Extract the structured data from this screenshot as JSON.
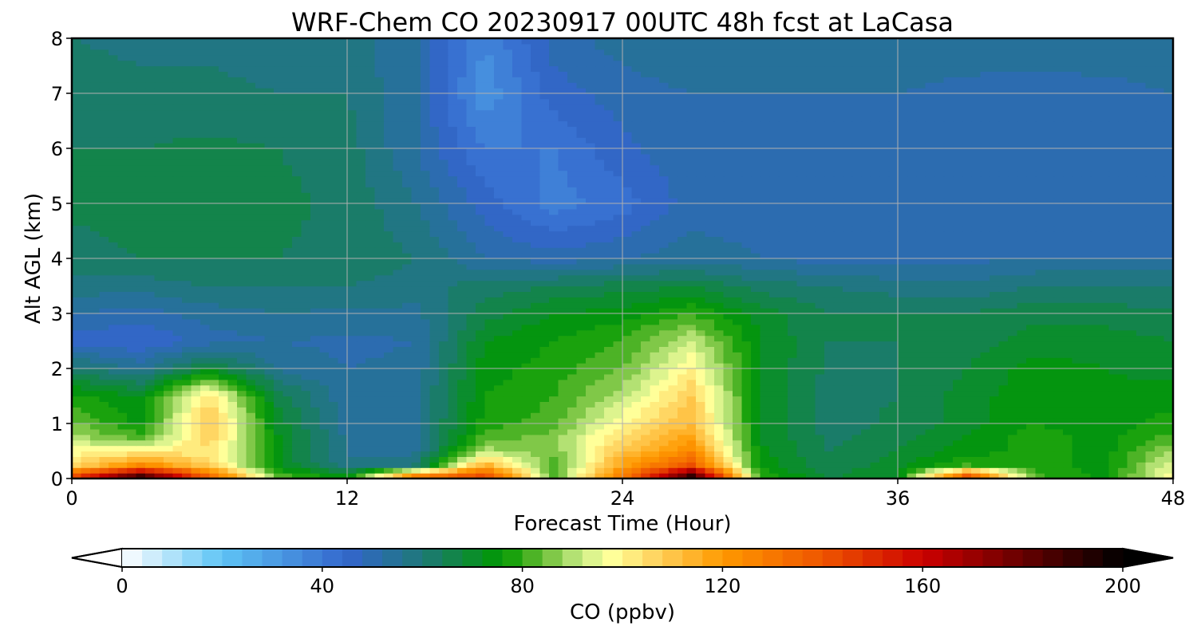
{
  "chart_data": {
    "type": "heatmap",
    "title": "WRF-Chem CO  20230917 00UTC 48h fcst at LaCasa",
    "xlabel": "Forecast Time (Hour)",
    "ylabel": "Alt AGL (km)",
    "xlim": [
      0,
      48
    ],
    "ylim": [
      0,
      8
    ],
    "xticks": [
      0,
      12,
      24,
      36,
      48
    ],
    "yticks": [
      0,
      1,
      2,
      3,
      4,
      5,
      6,
      7,
      8
    ],
    "grid": true,
    "x": [
      0,
      3,
      6,
      9,
      12,
      15,
      18,
      21,
      24,
      27,
      30,
      33,
      36,
      39,
      42,
      45,
      48
    ],
    "y": [
      0,
      0.25,
      0.5,
      0.75,
      1,
      1.5,
      2,
      2.5,
      3,
      3.5,
      4,
      5,
      6,
      7,
      8
    ],
    "z": [
      [
        150,
        200,
        140,
        85,
        75,
        140,
        150,
        82,
        130,
        200,
        80,
        68,
        72,
        150,
        82,
        75,
        100
      ],
      [
        105,
        125,
        108,
        72,
        58,
        60,
        115,
        80,
        118,
        140,
        75,
        65,
        70,
        80,
        78,
        74,
        95
      ],
      [
        98,
        100,
        102,
        72,
        55,
        55,
        90,
        85,
        110,
        125,
        73,
        64,
        68,
        74,
        78,
        74,
        88
      ],
      [
        90,
        82,
        108,
        72,
        55,
        55,
        82,
        86,
        105,
        118,
        72,
        63,
        66,
        72,
        78,
        74,
        82
      ],
      [
        85,
        75,
        110,
        70,
        54,
        55,
        78,
        82,
        100,
        112,
        72,
        62,
        65,
        70,
        76,
        73,
        78
      ],
      [
        78,
        72,
        104,
        66,
        53,
        55,
        76,
        80,
        90,
        108,
        72,
        62,
        64,
        70,
        75,
        73,
        74
      ],
      [
        62,
        55,
        70,
        55,
        52,
        53,
        74,
        78,
        84,
        100,
        72,
        63,
        64,
        68,
        74,
        72,
        70
      ],
      [
        46,
        44,
        50,
        52,
        51,
        52,
        72,
        76,
        80,
        92,
        72,
        64,
        64,
        66,
        70,
        70,
        68
      ],
      [
        52,
        50,
        54,
        56,
        55,
        55,
        66,
        72,
        74,
        80,
        70,
        64,
        64,
        64,
        67,
        66,
        65
      ],
      [
        58,
        58,
        60,
        60,
        60,
        58,
        62,
        64,
        66,
        68,
        62,
        60,
        58,
        57,
        60,
        60,
        60
      ],
      [
        62,
        64,
        64,
        64,
        63,
        60,
        52,
        50,
        52,
        54,
        52,
        50,
        50,
        51,
        52,
        52,
        52
      ],
      [
        65,
        66,
        66,
        65,
        63,
        56,
        46,
        38,
        42,
        50,
        50,
        48,
        48,
        48,
        49,
        49,
        49
      ],
      [
        64,
        64,
        65,
        64,
        62,
        52,
        40,
        40,
        47,
        51,
        50,
        49,
        50,
        50,
        49,
        48,
        48
      ],
      [
        62,
        61,
        61,
        60,
        60,
        52,
        33,
        46,
        50,
        52,
        52,
        52,
        52,
        51,
        50,
        50,
        52
      ],
      [
        60,
        59,
        59,
        58,
        58,
        52,
        36,
        50,
        54,
        56,
        56,
        55,
        54,
        54,
        55,
        56,
        56
      ]
    ],
    "colorbar": {
      "label": "CO  (ppbv)",
      "min": 0,
      "max": 200,
      "ticks": [
        0,
        40,
        80,
        120,
        160,
        200
      ],
      "extend": "both",
      "levels": 50,
      "stops": [
        {
          "v": 0,
          "c": "#ffffff"
        },
        {
          "v": 20,
          "c": "#5ec4f5"
        },
        {
          "v": 45,
          "c": "#3366cc"
        },
        {
          "v": 60,
          "c": "#1e7878"
        },
        {
          "v": 76,
          "c": "#009900"
        },
        {
          "v": 84,
          "c": "#66bb33"
        },
        {
          "v": 92,
          "c": "#ccee88"
        },
        {
          "v": 98,
          "c": "#ffff99"
        },
        {
          "v": 108,
          "c": "#ffcc55"
        },
        {
          "v": 120,
          "c": "#ff9900"
        },
        {
          "v": 140,
          "c": "#ee5500"
        },
        {
          "v": 160,
          "c": "#cc0000"
        },
        {
          "v": 180,
          "c": "#660000"
        },
        {
          "v": 200,
          "c": "#000000"
        }
      ]
    }
  }
}
